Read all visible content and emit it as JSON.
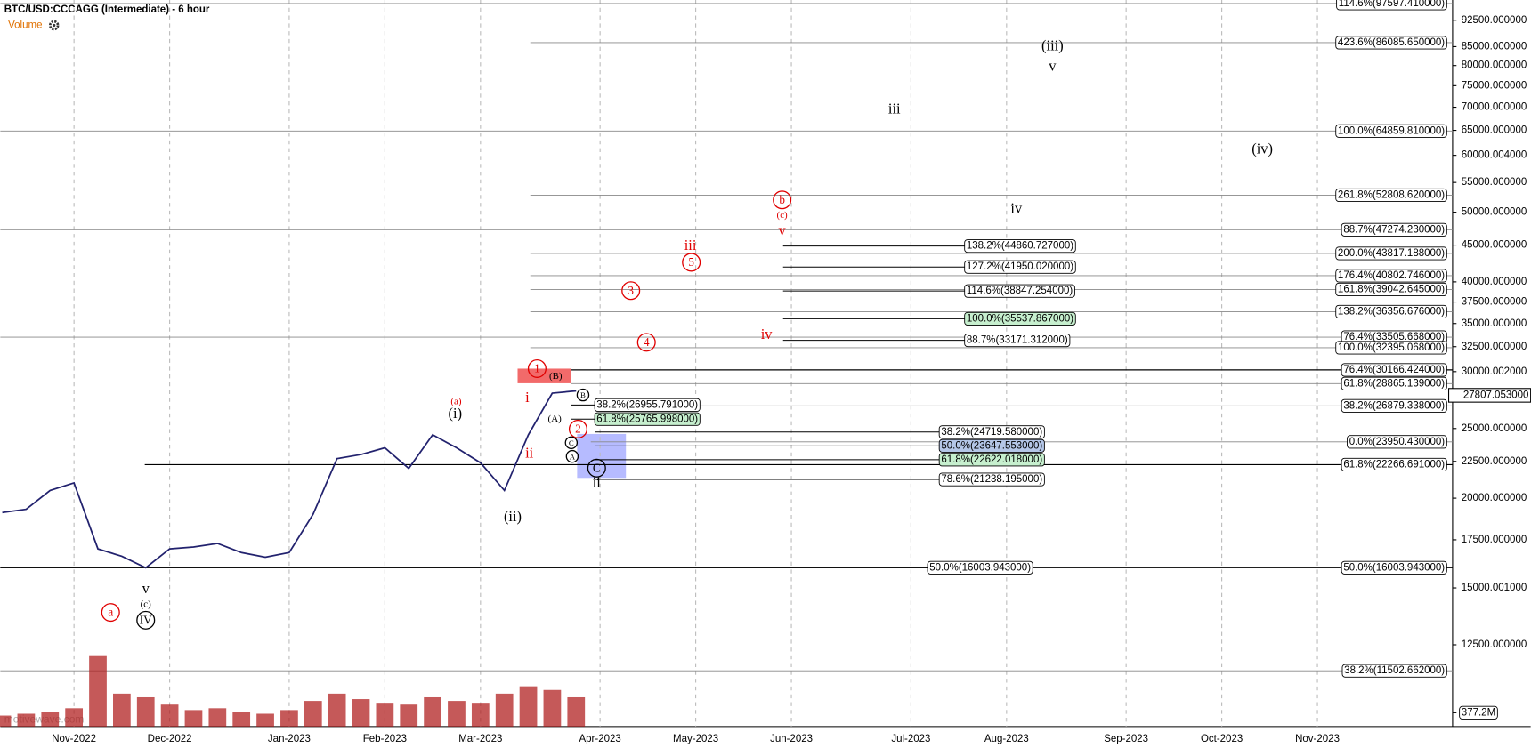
{
  "chart_data": {
    "type": "line",
    "title": "BTC/USD:CCCAGG (Intermediate) - 6 hour",
    "volume_label": "Volume",
    "watermark": "motivewave.com",
    "log_scale": true,
    "grid": "x",
    "categories": [
      null,
      null,
      null,
      "Nov-2022",
      null,
      null,
      null,
      "Dec-2022",
      null,
      null,
      null,
      null,
      "Jan-2023",
      null,
      null,
      null,
      "Feb-2023",
      null,
      null,
      null,
      "Mar-2023",
      null,
      null,
      null,
      null,
      "Apr-2023",
      null,
      null,
      null,
      "May-2023",
      null,
      null,
      null,
      "Jun-2023",
      null,
      null,
      null,
      null,
      "Jul-2023",
      null,
      null,
      null,
      "Aug-2023",
      null,
      null,
      null,
      null,
      "Sep-2023",
      null,
      null,
      null,
      "Oct-2023",
      null,
      null,
      null,
      "Nov-2023",
      null,
      null,
      null,
      null
    ],
    "series": [
      {
        "name": "BTC/USD",
        "type": "line",
        "color": "#22226e",
        "values": [
          19100,
          19300,
          20500,
          21000,
          17000,
          16600,
          16000,
          17000,
          17100,
          17300,
          16800,
          16550,
          16800,
          19000,
          22700,
          23000,
          23500,
          22000,
          24500,
          23500,
          22400,
          20500,
          24500,
          28000,
          28200,
          null,
          null,
          null,
          null,
          null,
          null,
          null,
          null,
          null,
          null,
          null,
          null,
          null,
          null,
          null,
          null,
          null,
          null,
          null,
          null,
          null,
          null,
          null,
          null,
          null,
          null,
          null,
          null,
          null,
          null,
          null,
          null,
          null,
          null,
          null
        ]
      },
      {
        "name": "Volume",
        "type": "bar",
        "axis": "y2",
        "color": "#b22222",
        "values": [
          300,
          350,
          400,
          500,
          1950,
          900,
          800,
          600,
          450,
          500,
          400,
          350,
          450,
          700,
          900,
          750,
          650,
          600,
          800,
          700,
          650,
          900,
          1100,
          1000,
          800,
          null,
          null,
          null,
          null,
          null,
          null,
          null,
          null,
          null,
          null,
          null,
          null,
          null,
          null,
          null,
          null,
          null,
          null,
          null,
          null,
          null,
          null,
          null,
          null,
          null,
          null,
          null,
          null,
          null,
          null,
          null,
          null,
          null,
          null,
          null
        ]
      }
    ],
    "ylim": [
      9620,
      98700
    ],
    "yticks": [
      {
        "value": 92500,
        "label": "92500.000000"
      },
      {
        "value": 85000,
        "label": "85000.000000"
      },
      {
        "value": 80000,
        "label": "80000.000000"
      },
      {
        "value": 75000,
        "label": "75000.000000"
      },
      {
        "value": 70000,
        "label": "70000.000000"
      },
      {
        "value": 65000,
        "label": "65000.000000"
      },
      {
        "value": 60000.004,
        "label": "60000.004000"
      },
      {
        "value": 55000,
        "label": "55000.000000"
      },
      {
        "value": 50000,
        "label": "50000.000000"
      },
      {
        "value": 45000,
        "label": "45000.000000"
      },
      {
        "value": 40000,
        "label": "40000.000000"
      },
      {
        "value": 37500,
        "label": "37500.000000"
      },
      {
        "value": 35000,
        "label": "35000.000000"
      },
      {
        "value": 32500,
        "label": "32500.000000"
      },
      {
        "value": 30000.002,
        "label": "30000.002000"
      },
      {
        "value": 25000,
        "label": "25000.000000"
      },
      {
        "value": 22500,
        "label": "22500.000000"
      },
      {
        "value": 20000,
        "label": "20000.000000"
      },
      {
        "value": 17500,
        "label": "17500.000000"
      },
      {
        "value": 15000.001,
        "label": "15000.001000"
      },
      {
        "value": 12500,
        "label": "12500.000000"
      }
    ],
    "y2lim": [
      0,
      2000
    ],
    "y2ticks": [
      {
        "value": 377.2,
        "label": "377.2M"
      }
    ],
    "last_price": {
      "value": 27807.053,
      "label": "27807.053000"
    },
    "right_levels": [
      {
        "label": "114.6%(97597.410000)",
        "value": 97597.41
      },
      {
        "label": "423.6%(86085.650000)",
        "value": 86085.65
      },
      {
        "label": "100.0%(64859.810000)",
        "value": 64859.81
      },
      {
        "label": "261.8%(52808.620000)",
        "value": 52808.62
      },
      {
        "label": "88.7%(47274.230000)",
        "value": 47274.23
      },
      {
        "label": "200.0%(43817.188000)",
        "value": 43817.188
      },
      {
        "label": "176.4%(40802.746000)",
        "value": 40802.746
      },
      {
        "label": "161.8%(39042.645000)",
        "value": 39042.645
      },
      {
        "label": "138.2%(36356.676000)",
        "value": 36356.676
      },
      {
        "label": "76.4%(33505.668000)",
        "value": 33505.668
      },
      {
        "label": "100.0%(32395.068000)",
        "value": 32395.068
      },
      {
        "label": "76.4%(30166.424000)",
        "value": 30166.424
      },
      {
        "label": "61.8%(28865.139000)",
        "value": 28865.139
      },
      {
        "label": "38.2%(26879.338000)",
        "value": 26879.338
      },
      {
        "label": "0.0%(23950.430000)",
        "value": 23950.43
      },
      {
        "label": "61.8%(22266.691000)",
        "value": 22266.691
      },
      {
        "label": "50.0%(16003.943000)",
        "value": 16003.943
      },
      {
        "label": "38.2%(11502.662000)",
        "value": 11502.662
      }
    ],
    "mid_levels": [
      {
        "label": "138.2%(44860.727000)",
        "value": 44860.727
      },
      {
        "label": "127.2%(41950.020000)",
        "value": 41950.02
      },
      {
        "label": "114.6%(38847.254000)",
        "value": 38847.254
      },
      {
        "label": "100.0%(35537.867000)",
        "value": 35537.867,
        "fill": "#c6efce"
      },
      {
        "label": "88.7%(33171.312000)",
        "value": 33171.312
      },
      {
        "label": "38.2%(26955.791000)",
        "value": 26955.791
      },
      {
        "label": "61.8%(25765.998000)",
        "value": 25765.998,
        "fill": "#c6efce"
      },
      {
        "label": "38.2%(24719.580000)",
        "value": 24719.58
      },
      {
        "label": "50.0%(23647.553000)",
        "value": 23647.553,
        "fill": "#b4c6e7"
      },
      {
        "label": "61.8%(22622.018000)",
        "value": 22622.018,
        "fill": "#c6efce"
      },
      {
        "label": "78.6%(21238.195000)",
        "value": 21238.195
      },
      {
        "label": "50.0%(16003.943000)",
        "value": 16003.943
      }
    ],
    "wave_labels": [
      {
        "text": "(iii)",
        "color": "#000000"
      },
      {
        "text": "v",
        "color": "#000000"
      },
      {
        "text": "iii",
        "color": "#000000"
      },
      {
        "text": "(iv)",
        "color": "#000000"
      },
      {
        "text": "iv",
        "color": "#000000"
      },
      {
        "text": "b",
        "color": "#e00000",
        "circled": true
      },
      {
        "text": "(c)",
        "color": "#e00000"
      },
      {
        "text": "v",
        "color": "#e00000"
      },
      {
        "text": "iii",
        "color": "#e00000"
      },
      {
        "text": "5",
        "color": "#e00000",
        "circled": true
      },
      {
        "text": "3",
        "color": "#e00000",
        "circled": true
      },
      {
        "text": "4",
        "color": "#e00000",
        "circled": true
      },
      {
        "text": "iv",
        "color": "#e00000"
      },
      {
        "text": "1",
        "color": "#e00000",
        "circled": true
      },
      {
        "text": "(B)",
        "color": "#000000"
      },
      {
        "text": "i",
        "color": "#e00000"
      },
      {
        "text": "(a)",
        "color": "#e00000"
      },
      {
        "text": "(i)",
        "color": "#000000"
      },
      {
        "text": "B",
        "color": "#000000",
        "circled": true
      },
      {
        "text": "(A)",
        "color": "#000000"
      },
      {
        "text": "2",
        "color": "#e00000",
        "circled": true
      },
      {
        "text": "ii",
        "color": "#e00000"
      },
      {
        "text": "C",
        "color": "#000000",
        "circled": true
      },
      {
        "text": "A",
        "color": "#000000",
        "circled": true
      },
      {
        "text": "C",
        "color": "#000000",
        "circled": true
      },
      {
        "text": "ii",
        "color": "#000000"
      },
      {
        "text": "(ii)",
        "color": "#000000"
      },
      {
        "text": "v",
        "color": "#000000"
      },
      {
        "text": "(c)",
        "color": "#000000"
      },
      {
        "text": "IV",
        "color": "#000000",
        "circled": true
      },
      {
        "text": "a",
        "color": "#e00000",
        "circled": true
      }
    ]
  }
}
